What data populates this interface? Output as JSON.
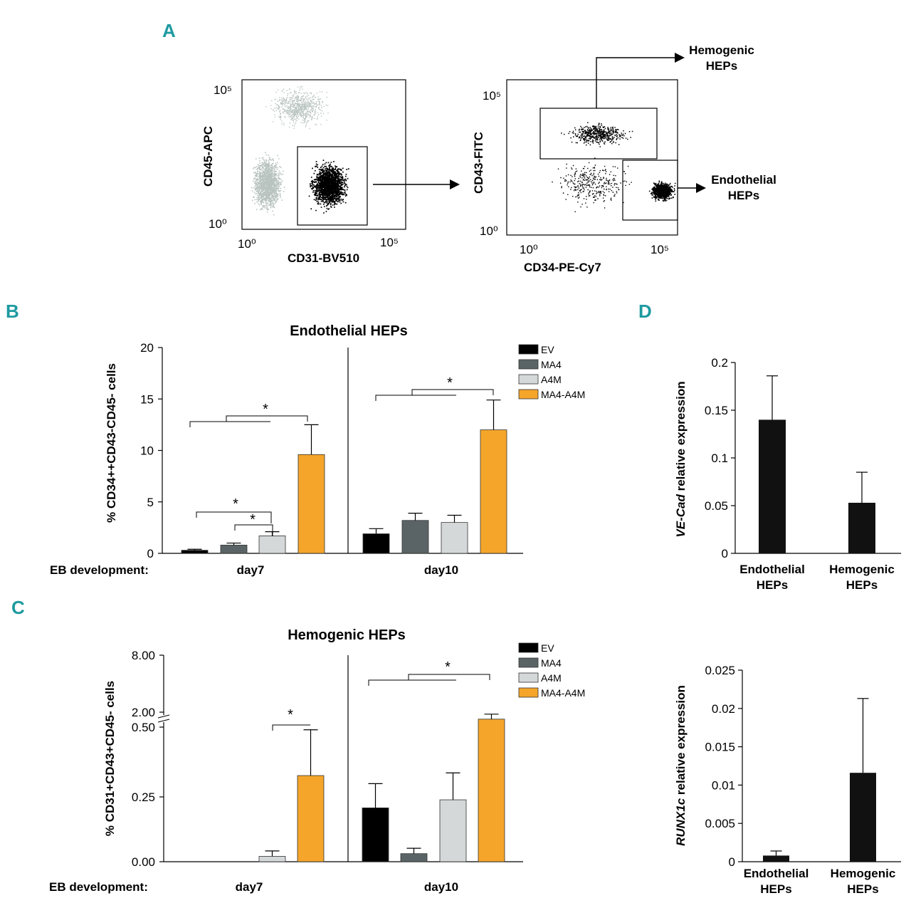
{
  "panel_labels": {
    "a": "A",
    "b": "B",
    "c": "C",
    "d": "D"
  },
  "colors": {
    "EV": "#000000",
    "MA4": "#5a6466",
    "A4M": "#d4d8d8",
    "MA4-A4M": "#f5a52a",
    "gate_gray": "#b9c4c1",
    "label": "#1e9aa0"
  },
  "flow": {
    "left": {
      "xlabel": "CD31-BV510",
      "ylabel": "CD45-APC",
      "x_tick_low": "10⁰",
      "x_tick_high": "10⁵",
      "y_tick_low": "10⁰",
      "y_tick_high": "10⁵"
    },
    "right": {
      "xlabel": "CD34-PE-Cy7",
      "ylabel": "CD43-FITC",
      "x_tick_low": "10⁰",
      "x_tick_high": "10⁵",
      "y_tick_low": "10⁰",
      "y_tick_high": "10⁵"
    },
    "hemogenic_label": [
      "Hemogenic",
      "HEPs"
    ],
    "endothelial_label": [
      "Endothelial",
      "HEPs"
    ]
  },
  "chart_data": [
    {
      "id": "B",
      "type": "bar",
      "title": "Endothelial HEPs",
      "ylabel": "% CD34++CD43-CD45- cells",
      "xlabel": "EB development:",
      "groups": [
        "day7",
        "day10"
      ],
      "series_names": [
        "EV",
        "MA4",
        "A4M",
        "MA4-A4M"
      ],
      "values": {
        "day7": [
          0.3,
          0.8,
          1.7,
          9.6
        ],
        "day10": [
          1.9,
          3.2,
          3.0,
          12.0
        ]
      },
      "errors": {
        "day7": [
          0.1,
          0.2,
          0.4,
          2.9
        ],
        "day10": [
          0.5,
          0.7,
          0.7,
          2.9
        ]
      },
      "ylim": [
        0,
        20
      ],
      "yticks": [
        0,
        5,
        10,
        15,
        20
      ],
      "significance": "*"
    },
    {
      "id": "C",
      "type": "bar",
      "title": "Hemogenic HEPs",
      "ylabel": "% CD31+CD43+CD45- cells",
      "xlabel": "EB development:",
      "groups": [
        "day7",
        "day10"
      ],
      "series_names": [
        "EV",
        "MA4",
        "A4M",
        "MA4-A4M"
      ],
      "values": {
        "day7": [
          0.0,
          0.0,
          0.02,
          0.32
        ],
        "day10": [
          0.2,
          0.03,
          0.23,
          1.3
        ]
      },
      "errors": {
        "day7": [
          0.0,
          0.0,
          0.02,
          0.17
        ],
        "day10": [
          0.09,
          0.02,
          0.1,
          0.5
        ]
      },
      "ylim": [
        0,
        8
      ],
      "yticks": [
        "0.00",
        "0.25",
        "0.50",
        "2.00",
        "8.00"
      ],
      "axis_break": true,
      "significance": "*"
    },
    {
      "id": "D-top",
      "type": "bar",
      "ylabel_italic": "VE-Cad",
      "ylabel_rest": " relative expression",
      "categories": [
        "Endothelial HEPs",
        "Hemogenic HEPs"
      ],
      "values": [
        0.14,
        0.053
      ],
      "errors": [
        0.046,
        0.032
      ],
      "ylim": [
        0,
        0.2
      ],
      "yticks": [
        "0",
        "0.05",
        "0.1",
        "0.15",
        "0.2"
      ]
    },
    {
      "id": "D-bottom",
      "type": "bar",
      "ylabel_italic": "RUNX1c",
      "ylabel_rest": " relative expression",
      "categories": [
        "Endothelial HEPs",
        "Hemogenic HEPs"
      ],
      "values": [
        0.0008,
        0.0116
      ],
      "errors": [
        0.0006,
        0.0097
      ],
      "ylim": [
        0,
        0.025
      ],
      "yticks": [
        "0",
        "0.005",
        "0.01",
        "0.015",
        "0.02",
        "0.025"
      ]
    }
  ],
  "bar_labels": {
    "Endothelial HEPs": [
      "Endothelial",
      "HEPs"
    ],
    "Hemogenic HEPs": [
      "Hemogenic",
      "HEPs"
    ]
  }
}
